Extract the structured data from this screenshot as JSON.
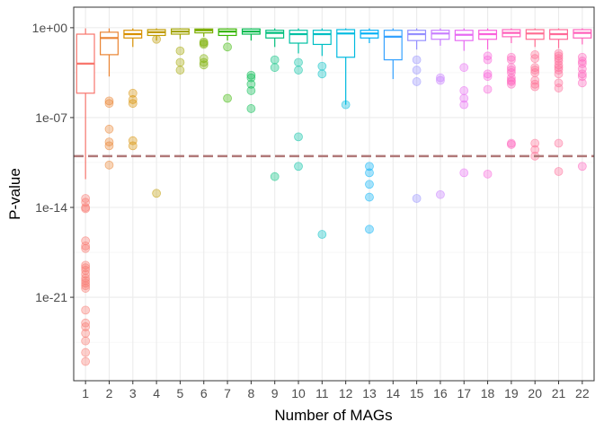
{
  "chart_data": {
    "type": "boxplot",
    "title": "",
    "xlabel": "Number of MAGs",
    "ylabel": "P-value",
    "y_scale": "log10",
    "ylim_log10": [
      -27.5,
      1.6
    ],
    "yticks_log10": [
      0,
      -7,
      -14,
      -21
    ],
    "ytick_labels": [
      "1e+00",
      "1e-07",
      "1e-14",
      "1e-21"
    ],
    "threshold_log10": -10,
    "threshold_color": "#b07878",
    "categories": [
      "1",
      "2",
      "3",
      "4",
      "5",
      "6",
      "7",
      "8",
      "9",
      "10",
      "11",
      "12",
      "13",
      "14",
      "15",
      "16",
      "17",
      "18",
      "19",
      "20",
      "21",
      "22"
    ],
    "colors": [
      "#F8766D",
      "#EA8331",
      "#D89000",
      "#C09B00",
      "#A3A500",
      "#7CAE00",
      "#39B600",
      "#00BB4E",
      "#00BF7D",
      "#00C1A3",
      "#00BFC4",
      "#00BAE0",
      "#00B0F6",
      "#35A2FF",
      "#9590FF",
      "#C77CFF",
      "#E76BF3",
      "#FA62DB",
      "#FF62BC",
      "#FF6C91",
      "#FF6A98",
      "#FF62BC"
    ],
    "boxes": [
      {
        "q1": -5.1,
        "median": -2.8,
        "q3": -0.5,
        "wmin": -11.8,
        "wmax": -0.05
      },
      {
        "q1": -2.1,
        "median": -0.8,
        "q3": -0.35,
        "wmin": -3.8,
        "wmax": -0.05
      },
      {
        "q1": -0.8,
        "median": -0.5,
        "q3": -0.2,
        "wmin": -1.5,
        "wmax": -0.05
      },
      {
        "q1": -0.6,
        "median": -0.35,
        "q3": -0.15,
        "wmin": -1.0,
        "wmax": -0.05
      },
      {
        "q1": -0.5,
        "median": -0.3,
        "q3": -0.1,
        "wmin": -0.9,
        "wmax": -0.05
      },
      {
        "q1": -0.4,
        "median": -0.2,
        "q3": -0.1,
        "wmin": -0.7,
        "wmax": -0.05
      },
      {
        "q1": -0.6,
        "median": -0.3,
        "q3": -0.1,
        "wmin": -1.0,
        "wmax": -0.05
      },
      {
        "q1": -0.5,
        "median": -0.3,
        "q3": -0.1,
        "wmin": -1.0,
        "wmax": -0.05
      },
      {
        "q1": -0.8,
        "median": -0.4,
        "q3": -0.2,
        "wmin": -1.5,
        "wmax": -0.05
      },
      {
        "q1": -1.2,
        "median": -0.5,
        "q3": -0.2,
        "wmin": -2.0,
        "wmax": -0.05
      },
      {
        "q1": -1.3,
        "median": -0.5,
        "q3": -0.2,
        "wmin": -2.2,
        "wmax": -0.05
      },
      {
        "q1": -2.3,
        "median": -0.45,
        "q3": -0.15,
        "wmin": -6.0,
        "wmax": -0.05
      },
      {
        "q1": -0.8,
        "median": -0.45,
        "q3": -0.2,
        "wmin": -1.2,
        "wmax": -0.05
      },
      {
        "q1": -2.5,
        "median": -0.7,
        "q3": -0.2,
        "wmin": -4.0,
        "wmax": -0.05
      },
      {
        "q1": -1.0,
        "median": -0.5,
        "q3": -0.2,
        "wmin": -1.7,
        "wmax": -0.05
      },
      {
        "q1": -0.9,
        "median": -0.45,
        "q3": -0.2,
        "wmin": -1.4,
        "wmax": -0.05
      },
      {
        "q1": -1.0,
        "median": -0.55,
        "q3": -0.2,
        "wmin": -1.8,
        "wmax": -0.05
      },
      {
        "q1": -0.9,
        "median": -0.5,
        "q3": -0.2,
        "wmin": -1.7,
        "wmax": -0.05
      },
      {
        "q1": -0.7,
        "median": -0.4,
        "q3": -0.15,
        "wmin": -1.2,
        "wmax": -0.05
      },
      {
        "q1": -0.9,
        "median": -0.45,
        "q3": -0.15,
        "wmin": -1.5,
        "wmax": -0.05
      },
      {
        "q1": -0.9,
        "median": -0.5,
        "q3": -0.15,
        "wmin": -1.6,
        "wmax": -0.05
      },
      {
        "q1": -0.8,
        "median": -0.4,
        "q3": -0.15,
        "wmin": -1.3,
        "wmax": -0.05
      }
    ],
    "outliers": [
      [
        -13.3,
        -13.6,
        -14.0,
        -14.1,
        -16.6,
        -17.0,
        -17.2,
        -18.5,
        -18.7,
        -18.9,
        -19.2,
        -19.5,
        -19.7,
        -19.9,
        -20.1,
        -20.3,
        -22.0,
        -23.0,
        -23.3,
        -23.8,
        -24.4,
        -25.3,
        -26.0
      ],
      [
        -5.7,
        -5.9,
        -7.9,
        -8.9,
        -9.2,
        -10.7
      ],
      [
        -5.1,
        -5.6,
        -5.9,
        -8.8,
        -9.2
      ],
      [
        -0.9,
        -12.9
      ],
      [
        -1.8,
        -2.7,
        -3.3
      ],
      [
        -1.1,
        -1.2,
        -1.3,
        -2.4,
        -2.7,
        -2.9
      ],
      [
        -1.5,
        -5.5
      ],
      [
        -3.7,
        -3.9,
        -4.4,
        -4.9,
        -6.3
      ],
      [
        -2.5,
        -3.1,
        -11.6
      ],
      [
        -2.7,
        -3.3,
        -8.5,
        -10.8
      ],
      [
        -3.0,
        -3.6,
        -16.1
      ],
      [
        -6.0
      ],
      [
        -10.8,
        -11.3,
        -12.2,
        -13.2,
        -15.7
      ],
      [],
      [
        -2.5,
        -3.3,
        -4.2,
        -13.3
      ],
      [
        -3.9,
        -4.1,
        -13.0
      ],
      [
        -3.1,
        -4.9,
        -5.5,
        -6.0,
        -11.3
      ],
      [
        -2.2,
        -2.5,
        -3.6,
        -3.8,
        -4.8,
        -11.4
      ],
      [
        -2.3,
        -2.5,
        -3.1,
        -3.3,
        -3.5,
        -3.9,
        -4.1,
        -4.2,
        -4.4,
        -9.0,
        -9.1
      ],
      [
        -2.1,
        -2.4,
        -3.1,
        -3.3,
        -3.5,
        -4.1,
        -4.4,
        -4.6,
        -9.0,
        -9.5,
        -10.0
      ],
      [
        -2.0,
        -2.2,
        -2.4,
        -2.6,
        -2.9,
        -3.1,
        -3.3,
        -3.6,
        -4.3,
        -4.7,
        -9.0,
        -11.2
      ],
      [
        -2.3,
        -2.6,
        -2.8,
        -3.2,
        -3.6,
        -3.8,
        -4.3,
        -10.8
      ]
    ]
  }
}
